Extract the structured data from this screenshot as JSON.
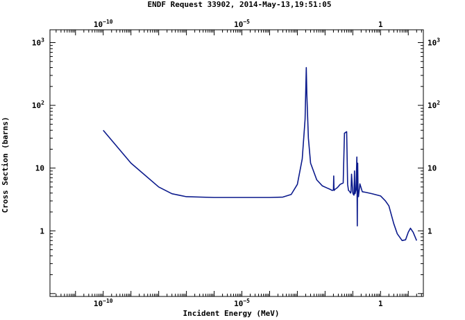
{
  "chart_data": {
    "type": "line",
    "title": "ENDF Request 33902, 2014-May-13,19:51:05",
    "xlabel": "Incident Energy (MeV)",
    "ylabel": "Cross Section (barns)",
    "x_scale": "log",
    "y_scale": "log",
    "xlim": [
      1.2e-12,
      35
    ],
    "ylim": [
      0.09,
      1600
    ],
    "grid": false,
    "x_ticks": [
      {
        "value": 1e-10,
        "base": "10",
        "exp": "−10"
      },
      {
        "value": 1e-05,
        "base": "10",
        "exp": "−5"
      },
      {
        "value": 1,
        "base": "1",
        "exp": ""
      }
    ],
    "y_ticks": [
      {
        "value": 1,
        "base": "1",
        "exp": ""
      },
      {
        "value": 10,
        "base": "10",
        "exp": ""
      },
      {
        "value": 100,
        "base": "10",
        "exp": "2"
      },
      {
        "value": 1000,
        "base": "10",
        "exp": "3"
      }
    ],
    "line_color": "#0b1a8c",
    "series": [
      {
        "x": [
          1e-10,
          1e-09,
          1e-08,
          3e-08,
          1e-07,
          1e-06,
          1e-05,
          0.0001,
          0.0003,
          0.0006,
          0.001,
          0.0015,
          0.0019,
          0.00205,
          0.0021,
          0.0022,
          0.0025,
          0.003,
          0.005,
          0.008,
          0.012,
          0.015,
          0.018,
          0.02,
          0.0205,
          0.021,
          0.023,
          0.028,
          0.035,
          0.045,
          0.05,
          0.06,
          0.065,
          0.07,
          0.075,
          0.078,
          0.08,
          0.083,
          0.086,
          0.09,
          0.1,
          0.105,
          0.11,
          0.115,
          0.12,
          0.13,
          0.14,
          0.145,
          0.15,
          0.155,
          0.16,
          0.18,
          0.22,
          0.3,
          0.5,
          1,
          1.5,
          2,
          3,
          4,
          6,
          8,
          10,
          12,
          15,
          20
        ],
        "y": [
          40,
          12,
          5,
          3.9,
          3.5,
          3.4,
          3.4,
          3.4,
          3.45,
          3.8,
          5.5,
          14,
          60,
          250,
          400,
          150,
          30,
          12,
          6.5,
          5.2,
          4.8,
          4.6,
          4.4,
          4.5,
          7.5,
          4.4,
          4.6,
          4.9,
          5.5,
          5.8,
          36,
          38,
          5.5,
          4.4,
          4.3,
          4.2,
          4.1,
          4.0,
          4.2,
          8.0,
          4.0,
          3.8,
          3.7,
          9.0,
          3.9,
          4.5,
          15.0,
          1.2,
          12.0,
          3.8,
          3.5,
          5.6,
          4.2,
          4.1,
          3.9,
          3.6,
          3.0,
          2.5,
          1.3,
          0.9,
          0.7,
          0.72,
          0.95,
          1.1,
          0.95,
          0.7
        ]
      }
    ]
  }
}
